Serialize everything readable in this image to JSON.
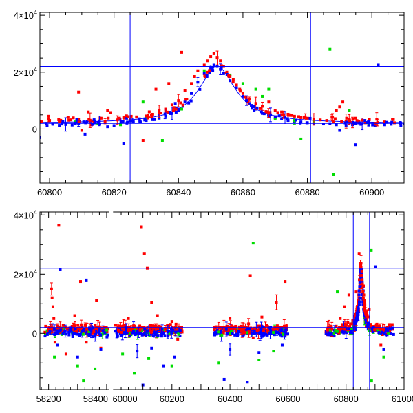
{
  "chart_data": [
    {
      "type": "scatter",
      "title": "",
      "xlabel": "",
      "ylabel": "",
      "xlim": [
        60797,
        60910
      ],
      "ylim": [
        -19000,
        41000
      ],
      "x_ticks": [
        60800,
        60820,
        60840,
        60860,
        60880,
        60900
      ],
      "y_ticks": [
        {
          "value": 40000,
          "mantissa": "4",
          "times": "×",
          "base": "10",
          "exp": "4"
        },
        {
          "value": 20000,
          "mantissa": "2",
          "times": "×",
          "base": "10",
          "exp": "4"
        },
        {
          "value": 0,
          "label": "0"
        }
      ],
      "hlines": [
        22000,
        2000
      ],
      "vlines": [
        60825,
        60881
      ],
      "model_curve": {
        "peak_x": 60852,
        "peak_y": 22000,
        "baseline": 2000,
        "width": 7,
        "color": "#0000ff"
      },
      "series": [
        {
          "name": "red",
          "color": "#ff0000",
          "points": [
            [
              60800,
              3000
            ],
            [
              60803,
              2600
            ],
            [
              60806,
              3100
            ],
            [
              60809,
              13000
            ],
            [
              60809,
              3500
            ],
            [
              60810,
              -500
            ],
            [
              60812,
              6000
            ],
            [
              60813,
              1500
            ],
            [
              60816,
              3800
            ],
            [
              60818,
              6500
            ],
            [
              60819,
              5800
            ],
            [
              60821,
              3200
            ],
            [
              60823,
              4000
            ],
            [
              60825,
              3500
            ],
            [
              60827,
              4200
            ],
            [
              60829,
              -4000
            ],
            [
              60830,
              4600
            ],
            [
              60832,
              5200
            ],
            [
              60833,
              14000
            ],
            [
              60834,
              6200
            ],
            [
              60836,
              7000
            ],
            [
              60837,
              16000
            ],
            [
              60838,
              8500
            ],
            [
              60840,
              10000
            ],
            [
              60841,
              27000
            ],
            [
              60842,
              13500
            ],
            [
              60844,
              16000
            ],
            [
              60845,
              18500
            ],
            [
              60846,
              20500
            ],
            [
              60848,
              22500
            ],
            [
              60849,
              24000
            ],
            [
              60850,
              25500
            ],
            [
              60851,
              26500
            ],
            [
              60852,
              25000
            ],
            [
              60853,
              24000
            ],
            [
              60854,
              22000
            ],
            [
              60855,
              20000
            ],
            [
              60856,
              18500
            ],
            [
              60857,
              17500
            ],
            [
              60858,
              15500
            ],
            [
              60859,
              14000
            ],
            [
              60860,
              12500
            ],
            [
              60861,
              11000
            ],
            [
              60862,
              10500
            ],
            [
              60864,
              9000
            ],
            [
              60866,
              8000
            ],
            [
              60868,
              9500
            ],
            [
              60870,
              6500
            ],
            [
              60872,
              6000
            ],
            [
              60874,
              5200
            ],
            [
              60876,
              4500
            ],
            [
              60878,
              4000
            ],
            [
              60880,
              3800
            ],
            [
              60882,
              3400
            ],
            [
              60884,
              3200
            ],
            [
              60886,
              3000
            ],
            [
              60888,
              2500
            ],
            [
              60889,
              6500
            ],
            [
              60890,
              7800
            ],
            [
              60891,
              9500
            ],
            [
              60892,
              2800
            ],
            [
              60894,
              2300
            ],
            [
              60896,
              2600
            ],
            [
              60898,
              2200
            ],
            [
              60901,
              2000
            ],
            [
              60904,
              2500
            ],
            [
              60907,
              2200
            ]
          ]
        },
        {
          "name": "blue",
          "color": "#0000ff",
          "points": [
            [
              60797,
              -3000
            ],
            [
              60799,
              2000
            ],
            [
              60801,
              1700
            ],
            [
              60803,
              1300
            ],
            [
              60805,
              1600
            ],
            [
              60807,
              1400
            ],
            [
              60809,
              1800
            ],
            [
              60811,
              -1800
            ],
            [
              60813,
              1500
            ],
            [
              60815,
              2200
            ],
            [
              60818,
              800
            ],
            [
              60820,
              1200
            ],
            [
              60823,
              -5000
            ],
            [
              60824,
              2100
            ],
            [
              60826,
              2500
            ],
            [
              60828,
              2800
            ],
            [
              60830,
              3000
            ],
            [
              60832,
              3300
            ],
            [
              60834,
              3800
            ],
            [
              60836,
              4500
            ],
            [
              60838,
              5500
            ],
            [
              60839,
              9000
            ],
            [
              60840,
              7000
            ],
            [
              60842,
              9500
            ],
            [
              60844,
              12500
            ],
            [
              60846,
              16500
            ],
            [
              60848,
              19500
            ],
            [
              60850,
              21500
            ],
            [
              60851,
              22500
            ],
            [
              60852,
              22000
            ],
            [
              60853,
              21000
            ],
            [
              60854,
              19500
            ],
            [
              60856,
              17000
            ],
            [
              60858,
              14500
            ],
            [
              60860,
              11500
            ],
            [
              60862,
              9000
            ],
            [
              60864,
              7000
            ],
            [
              60866,
              5500
            ],
            [
              60868,
              4500
            ],
            [
              60870,
              4000
            ],
            [
              60872,
              3500
            ],
            [
              60874,
              3000
            ],
            [
              60876,
              2700
            ],
            [
              60878,
              2500
            ],
            [
              60880,
              2200
            ],
            [
              60882,
              2000
            ],
            [
              60885,
              1800
            ],
            [
              60887,
              1900
            ],
            [
              60889,
              1500
            ],
            [
              60890,
              -500
            ],
            [
              60892,
              1300
            ],
            [
              60894,
              1500
            ],
            [
              60895,
              -5500
            ],
            [
              60897,
              1800
            ],
            [
              60899,
              1400
            ],
            [
              60901,
              1200
            ],
            [
              60902,
              22500
            ],
            [
              60904,
              1500
            ],
            [
              60906,
              1700
            ],
            [
              60909,
              1200
            ]
          ]
        },
        {
          "name": "green",
          "color": "#00dd00",
          "points": [
            [
              60808,
              2500
            ],
            [
              60815,
              1800
            ],
            [
              60822,
              1500
            ],
            [
              60829,
              9500
            ],
            [
              60830,
              4000
            ],
            [
              60835,
              -4000
            ],
            [
              60841,
              7000
            ],
            [
              60848,
              20500
            ],
            [
              60856,
              19000
            ],
            [
              60860,
              16000
            ],
            [
              60864,
              14000
            ],
            [
              60866,
              11500
            ],
            [
              60868,
              14000
            ],
            [
              60870,
              3500
            ],
            [
              60876,
              3000
            ],
            [
              60878,
              -3500
            ],
            [
              60882,
              2500
            ],
            [
              60887,
              28000
            ],
            [
              60888,
              -16000
            ],
            [
              60893,
              6500
            ],
            [
              60899,
              2000
            ]
          ]
        }
      ]
    },
    {
      "type": "scatter",
      "title": "",
      "xlabel": "",
      "ylabel": "",
      "xlim": [
        58170,
        61000
      ],
      "ylim": [
        -19000,
        41000
      ],
      "axis_break": {
        "before": 58415,
        "after": 59990,
        "offset": 1575
      },
      "x_ticks": [
        {
          "value": 58200,
          "label": "58200"
        },
        {
          "value": 58400,
          "label": "58400"
        },
        {
          "value": 60000,
          "label": "60000"
        },
        {
          "value": 60200,
          "label": "60200"
        },
        {
          "value": 60400,
          "label": "60400"
        },
        {
          "value": 60600,
          "label": "60600"
        },
        {
          "value": 60800,
          "label": "60800"
        },
        {
          "value": 61000,
          "label": "61000"
        }
      ],
      "y_ticks": [
        {
          "value": 40000,
          "mantissa": "4",
          "times": "×",
          "base": "10",
          "exp": "4"
        },
        {
          "value": 20000,
          "mantissa": "2",
          "times": "×",
          "base": "10",
          "exp": "4"
        },
        {
          "value": 0,
          "label": "0"
        }
      ],
      "hlines": [
        22000,
        2000
      ],
      "vlines": [
        60825,
        60881
      ],
      "season_ranges": [
        [
          58185,
          58405
        ],
        [
          60005,
          60240
        ],
        [
          60345,
          60600
        ],
        [
          60730,
          60965
        ]
      ],
      "peak": {
        "x": 60852,
        "y": 22000,
        "width": 7,
        "baseline": 2000
      },
      "series": [
        {
          "name": "red",
          "color": "#ff0000",
          "outliers": [
            [
              58210,
              15000
            ],
            [
              58212,
              12000
            ],
            [
              58215,
              9000
            ],
            [
              58218,
              5000
            ],
            [
              58222,
              -3000
            ],
            [
              58235,
              36500
            ],
            [
              58260,
              -7000
            ],
            [
              58290,
              6000
            ],
            [
              58310,
              17500
            ],
            [
              58330,
              -3000
            ],
            [
              58365,
              11000
            ],
            [
              58380,
              -5000
            ],
            [
              60050,
              5000
            ],
            [
              60095,
              36000
            ],
            [
              60105,
              27000
            ],
            [
              60115,
              22000
            ],
            [
              60130,
              10500
            ],
            [
              60150,
              6000
            ],
            [
              60200,
              4000
            ],
            [
              60220,
              -2000
            ],
            [
              60400,
              5000
            ],
            [
              60470,
              19500
            ],
            [
              60480,
              -1500
            ],
            [
              60510,
              5500
            ],
            [
              60560,
              10500
            ],
            [
              60590,
              17500
            ],
            [
              60780,
              5000
            ],
            [
              60795,
              9000
            ],
            [
              60810,
              13000
            ],
            [
              60835,
              14000
            ],
            [
              60845,
              27000
            ],
            [
              60860,
              16000
            ],
            [
              60880,
              8000
            ],
            [
              60920,
              -4000
            ],
            [
              60950,
              3000
            ]
          ]
        },
        {
          "name": "blue",
          "color": "#0000ff",
          "outliers": [
            [
              58230,
              -4000
            ],
            [
              58240,
              21500
            ],
            [
              58300,
              -8000
            ],
            [
              58330,
              18000
            ],
            [
              58380,
              -5500
            ],
            [
              60080,
              -6000
            ],
            [
              60100,
              -17500
            ],
            [
              60130,
              -5000
            ],
            [
              60170,
              -11000
            ],
            [
              60210,
              -8000
            ],
            [
              60380,
              -15500
            ],
            [
              60400,
              -5500
            ],
            [
              60460,
              -16500
            ],
            [
              60500,
              -6500
            ],
            [
              60580,
              -4000
            ],
            [
              60902,
              22500
            ],
            [
              60930,
              -5500
            ]
          ]
        },
        {
          "name": "green",
          "color": "#00dd00",
          "outliers": [
            [
              58220,
              -8000
            ],
            [
              58300,
              -11000
            ],
            [
              58320,
              -16000
            ],
            [
              58360,
              -12000
            ],
            [
              60030,
              -7000
            ],
            [
              60070,
              -13500
            ],
            [
              60120,
              -8500
            ],
            [
              60200,
              -11000
            ],
            [
              60360,
              -10000
            ],
            [
              60480,
              30500
            ],
            [
              60500,
              -9000
            ],
            [
              60550,
              -6000
            ],
            [
              60770,
              14000
            ],
            [
              60887,
              28000
            ],
            [
              60888,
              -16000
            ],
            [
              60930,
              -8000
            ]
          ]
        }
      ]
    }
  ]
}
